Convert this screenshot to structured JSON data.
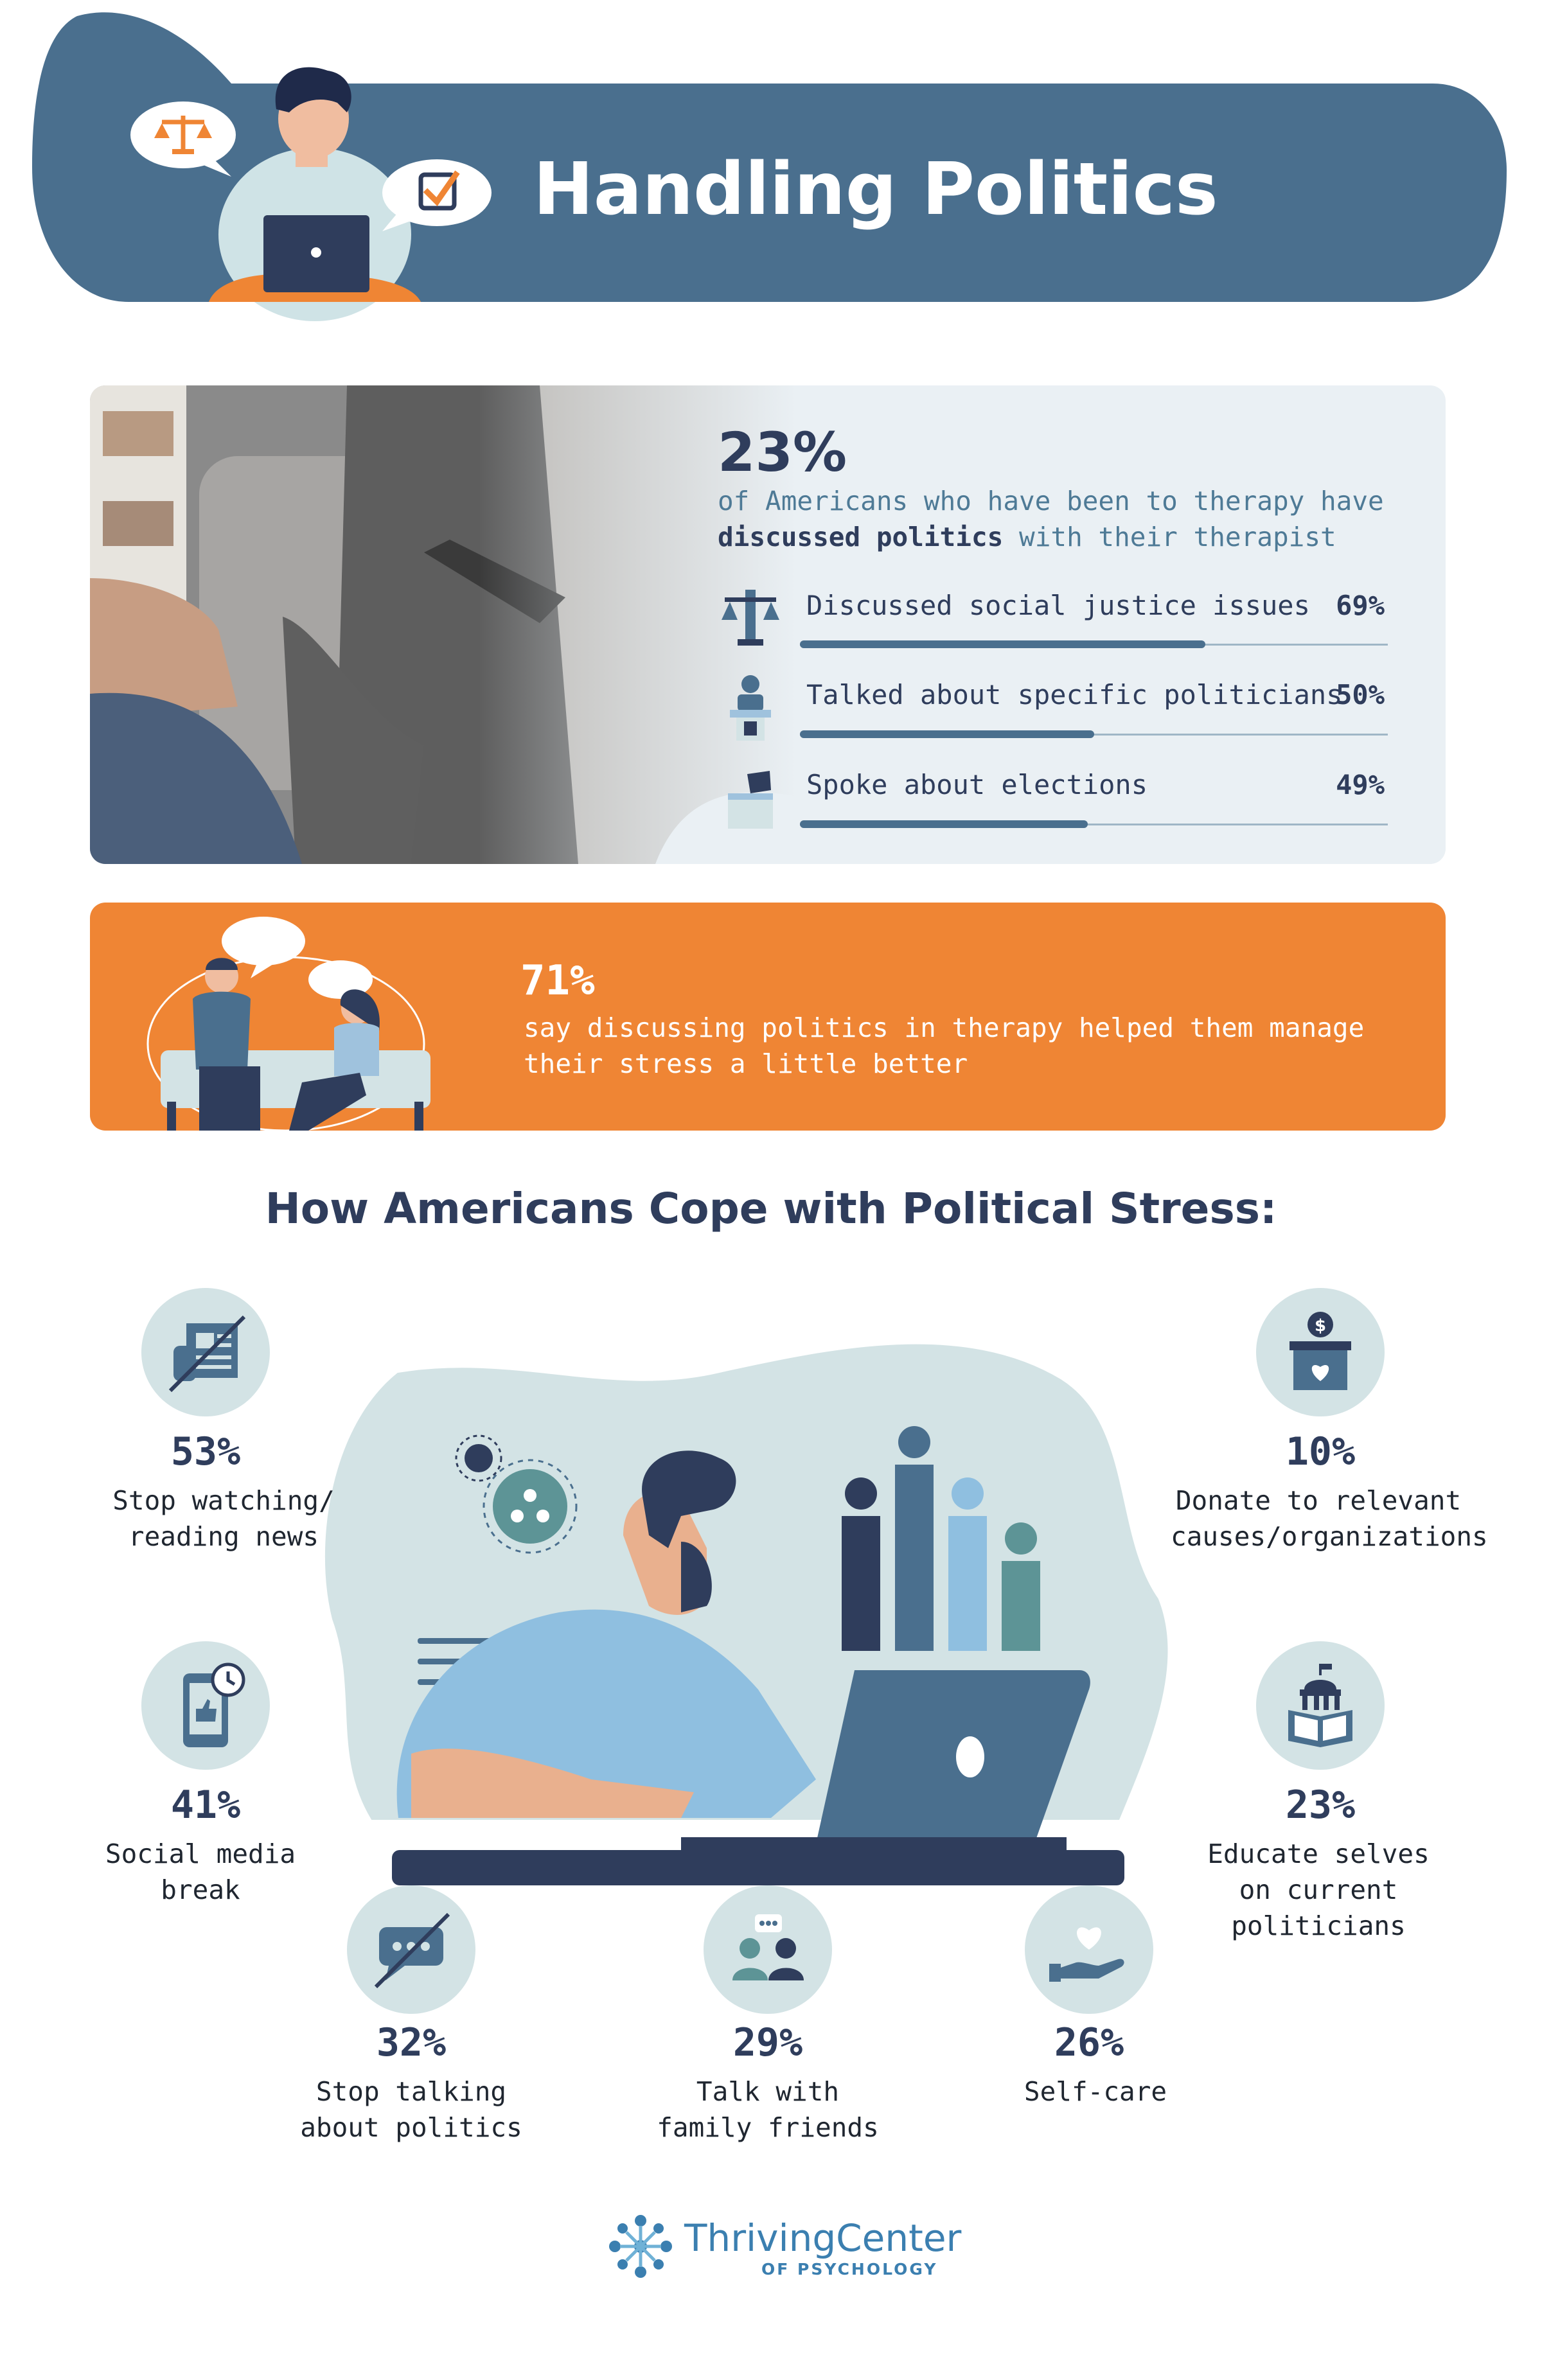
{
  "header": {
    "title": "Handling Politics"
  },
  "therapy": {
    "percent": "23%",
    "line1": "of Americans who have been to therapy have",
    "line2_bold": "discussed politics",
    "line2_rest": " with their therapist",
    "stats": [
      {
        "label": "Discussed social justice issues",
        "value": "69%",
        "fraction": 0.69,
        "icon": "scales-icon"
      },
      {
        "label": "Talked about specific politicians",
        "value": "50%",
        "fraction": 0.5,
        "icon": "politician-podium-icon"
      },
      {
        "label": "Spoke about elections",
        "value": "49%",
        "fraction": 0.49,
        "icon": "ballot-box-icon"
      }
    ]
  },
  "banner": {
    "percent": "71%",
    "line1": "say discussing politics in therapy helped them manage",
    "line2": "their stress a little better"
  },
  "cope": {
    "title": "How Americans Cope with Political Stress:",
    "items": [
      {
        "percent": "53%",
        "line1": "Stop watching/",
        "line2": "reading news",
        "icon": "no-news-icon"
      },
      {
        "percent": "41%",
        "line1": "Social media",
        "line2": "break",
        "icon": "phone-clock-icon"
      },
      {
        "percent": "32%",
        "line1": "Stop talking",
        "line2": "about politics",
        "icon": "no-chat-icon"
      },
      {
        "percent": "29%",
        "line1": "Talk with",
        "line2": "family friends",
        "icon": "people-chat-icon"
      },
      {
        "percent": "26%",
        "line1": "Self-care",
        "line2": "",
        "icon": "heart-hand-icon"
      },
      {
        "percent": "10%",
        "line1": "Donate to relevant",
        "line2": "causes/organizations",
        "icon": "donation-box-icon"
      },
      {
        "percent": "23%",
        "line1": "Educate selves",
        "line2": "on current",
        "line3": "politicians",
        "icon": "book-capitol-icon"
      }
    ]
  },
  "footer": {
    "brand": "ThrivingCenter",
    "brand_sub": "OF PSYCHOLOGY"
  },
  "colors": {
    "navy": "#2f3d5c",
    "steel": "#4a6f8e",
    "orange": "#ef8534",
    "mint": "#d3e3e5"
  }
}
